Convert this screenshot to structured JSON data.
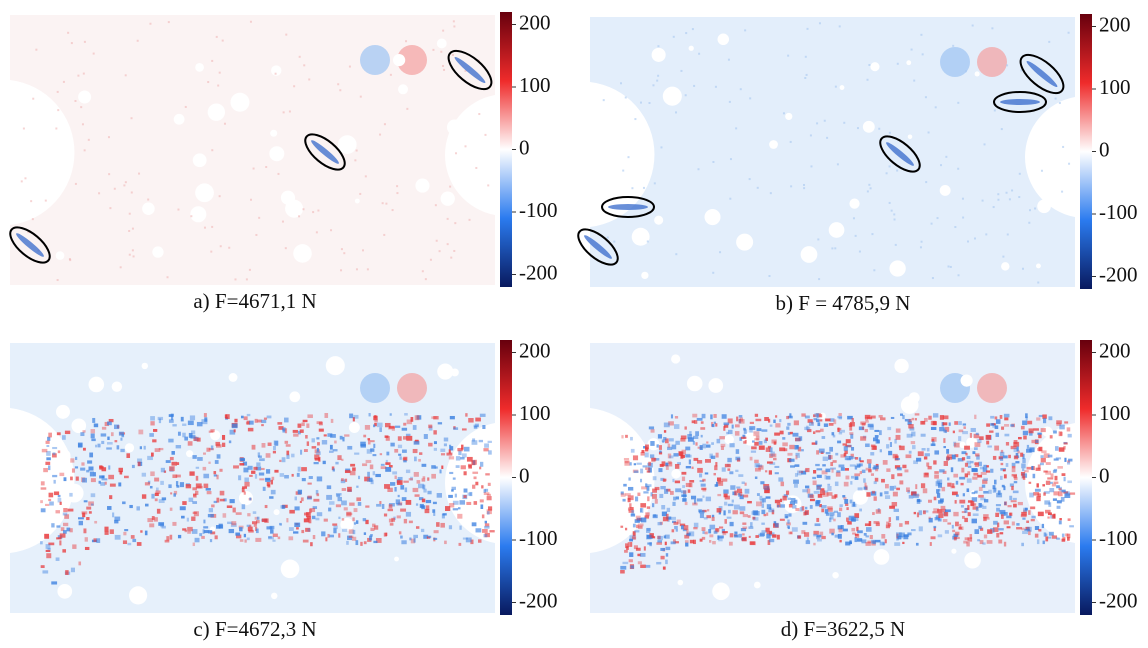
{
  "panels": [
    {
      "caption": "a) F=4671,1 N",
      "colorbar": {
        "lim": [
          -220,
          220
        ],
        "ticks": [
          200,
          100,
          0,
          -100,
          -200
        ]
      }
    },
    {
      "caption": "b) F = 4785,9 N",
      "colorbar": {
        "lim": [
          -220,
          220
        ],
        "ticks": [
          200,
          100,
          0,
          -100,
          -200
        ]
      }
    },
    {
      "caption": "c) F=4672,3 N",
      "colorbar": {
        "lim": [
          -220,
          220
        ],
        "ticks": [
          200,
          100,
          0,
          -100,
          -200
        ]
      }
    },
    {
      "caption": "d) F=3622,5 N",
      "colorbar": {
        "lim": [
          -220,
          220
        ],
        "ticks": [
          200,
          100,
          0,
          -100,
          -200
        ]
      }
    }
  ]
}
